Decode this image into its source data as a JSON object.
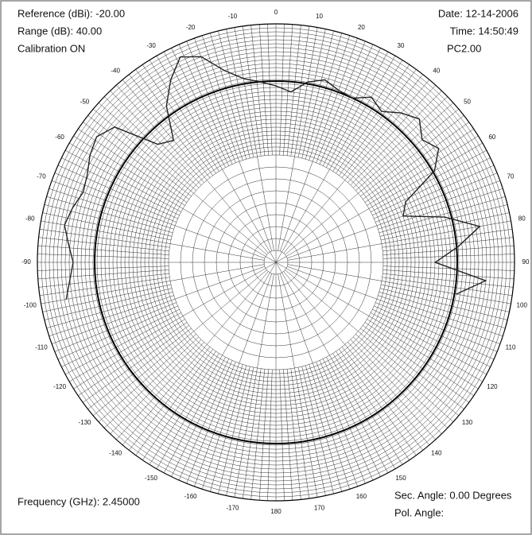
{
  "chart_data": {
    "type": "polar",
    "annotations": [
      "Reference (dBi): -20.00",
      "Range (dB): 40.00",
      "Calibration ON",
      "Date: 12-14-2006",
      "Time: 14:50:49",
      "PC2.00",
      "Frequency (GHz): 2.45000",
      "Sec. Angle: 0.00 Degrees",
      "Pol. Angle:"
    ],
    "angle_ticks": [
      -170,
      -160,
      -150,
      -140,
      -130,
      -120,
      -110,
      -100,
      -90,
      -80,
      -70,
      -60,
      -50,
      -40,
      -30,
      -20,
      -10,
      0,
      10,
      20,
      30,
      40,
      50,
      60,
      70,
      80,
      90,
      100,
      110,
      120,
      130,
      140,
      150,
      160,
      170,
      180
    ],
    "rlim": [
      -60,
      -20
    ],
    "x": [
      -100,
      -95,
      -90,
      -85,
      -80,
      -75,
      -70,
      -65,
      -60,
      -55,
      -50,
      -45,
      -40,
      -35,
      -30,
      -25,
      -20,
      -15,
      -10,
      -5,
      0,
      5,
      10,
      15,
      20,
      25,
      30,
      35,
      40,
      45,
      50,
      55,
      60,
      65,
      70,
      75,
      80,
      85,
      90,
      95,
      100
    ],
    "series": [
      {
        "color": "#222222",
        "values": [
          -24.3,
          -25.3,
          -26.0,
          -25.1,
          -24.0,
          -24.7,
          -25.6,
          -25.1,
          -24.0,
          -23.3,
          -24.7,
          -32.0,
          -33.3,
          -28.0,
          -24.7,
          -22.0,
          -23.3,
          -26.7,
          -28.7,
          -29.6,
          -30.4,
          -31.3,
          -29.3,
          -28.3,
          -29.3,
          -29.6,
          -28.0,
          -29.1,
          -27.3,
          -26.0,
          -28.0,
          -26.7,
          -29.3,
          -36.0,
          -37.3,
          -30.7,
          -25.3,
          -29.3,
          -33.3,
          -24.7,
          -29.3
        ]
      }
    ]
  }
}
